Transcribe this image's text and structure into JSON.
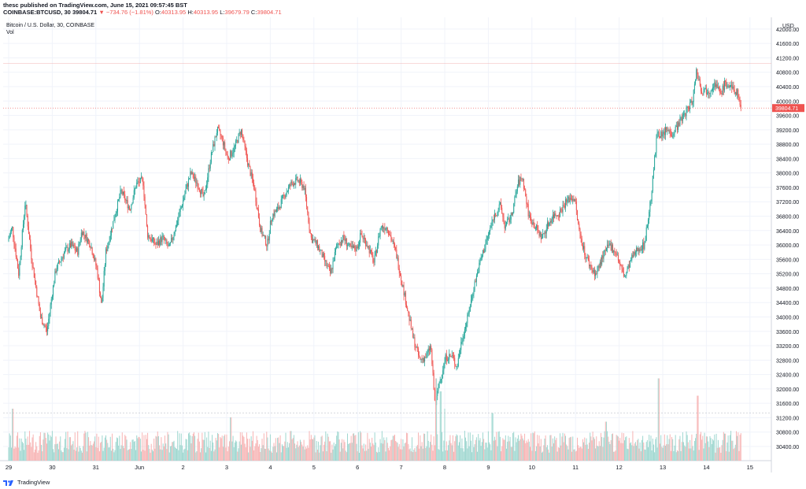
{
  "header": {
    "publish_line": "thesc published on TradingView.com, June 15, 2021 09:57:45 BST",
    "symbol": "COINBASE:BTCUSD, 30",
    "last": "39804.71",
    "change": "−734.76 (−1.81%)",
    "open_label": "O:",
    "open": "40313.95",
    "high_label": "H:",
    "high": "40313.95",
    "low_label": "L:",
    "low": "39679.79",
    "close_label": "C:",
    "close": "39804.71"
  },
  "chart_data": {
    "type": "candlestick",
    "title": "Bitcoin / U.S. Dollar, 30, COINBASE",
    "volume_label": "Vol",
    "currency": "USD",
    "ylim": [
      30000,
      42500
    ],
    "y_ticks": [
      30400,
      30800,
      31200,
      31600,
      32000,
      32400,
      32800,
      33200,
      33600,
      34000,
      34400,
      34800,
      35200,
      35600,
      36000,
      36400,
      36800,
      37200,
      37600,
      38000,
      38400,
      38800,
      39200,
      39600,
      40000,
      40400,
      40800,
      41200,
      41600,
      42000
    ],
    "y_tick_labels": [
      "30400.00",
      "30800.00",
      "31200.00",
      "31600.00",
      "32000.00",
      "32400.00",
      "32800.00",
      "33200.00",
      "33600.00",
      "34000.00",
      "34400.00",
      "34800.00",
      "35200.00",
      "35600.00",
      "36000.00",
      "36400.00",
      "36800.00",
      "37200.00",
      "37600.00",
      "38000.00",
      "38400.00",
      "38800.00",
      "39200.00",
      "39600.00",
      "40000.00",
      "40400.00",
      "40800.00",
      "41200.00",
      "41600.00",
      "42000.00"
    ],
    "x_ticks": [
      {
        "day": 0,
        "label": "29"
      },
      {
        "day": 1,
        "label": "30"
      },
      {
        "day": 2,
        "label": "31"
      },
      {
        "day": 3,
        "label": "Jun"
      },
      {
        "day": 4,
        "label": "2"
      },
      {
        "day": 5,
        "label": "3"
      },
      {
        "day": 6,
        "label": "4"
      },
      {
        "day": 7,
        "label": "5"
      },
      {
        "day": 8,
        "label": "6"
      },
      {
        "day": 9,
        "label": "7"
      },
      {
        "day": 10,
        "label": "8"
      },
      {
        "day": 11,
        "label": "9"
      },
      {
        "day": 12,
        "label": "10"
      },
      {
        "day": 13,
        "label": "11"
      },
      {
        "day": 14,
        "label": "12"
      },
      {
        "day": 15,
        "label": "13"
      },
      {
        "day": 16,
        "label": "14"
      },
      {
        "day": 17,
        "label": "15"
      }
    ],
    "last_price": 39804.71,
    "last_price_label": "39804.71",
    "days_shown": 17.6,
    "price_path": [
      [
        0.0,
        36100
      ],
      [
        0.1,
        36500
      ],
      [
        0.25,
        35200
      ],
      [
        0.4,
        37200
      ],
      [
        0.55,
        35600
      ],
      [
        0.75,
        34000
      ],
      [
        0.9,
        33600
      ],
      [
        1.0,
        34500
      ],
      [
        1.1,
        35300
      ],
      [
        1.3,
        35800
      ],
      [
        1.45,
        36000
      ],
      [
        1.6,
        35800
      ],
      [
        1.7,
        36400
      ],
      [
        1.9,
        36000
      ],
      [
        2.05,
        35300
      ],
      [
        2.15,
        34300
      ],
      [
        2.25,
        35800
      ],
      [
        2.45,
        36800
      ],
      [
        2.6,
        37500
      ],
      [
        2.8,
        37000
      ],
      [
        2.95,
        37700
      ],
      [
        3.1,
        37800
      ],
      [
        3.2,
        36300
      ],
      [
        3.4,
        36000
      ],
      [
        3.55,
        36200
      ],
      [
        3.7,
        35900
      ],
      [
        3.9,
        36700
      ],
      [
        4.1,
        37600
      ],
      [
        4.2,
        38000
      ],
      [
        4.35,
        37700
      ],
      [
        4.5,
        37300
      ],
      [
        4.65,
        38400
      ],
      [
        4.8,
        39200
      ],
      [
        4.9,
        39000
      ],
      [
        5.05,
        38400
      ],
      [
        5.2,
        38700
      ],
      [
        5.35,
        39200
      ],
      [
        5.5,
        38300
      ],
      [
        5.65,
        37600
      ],
      [
        5.8,
        36400
      ],
      [
        5.95,
        36000
      ],
      [
        6.05,
        36800
      ],
      [
        6.2,
        37000
      ],
      [
        6.35,
        37400
      ],
      [
        6.5,
        37700
      ],
      [
        6.65,
        37800
      ],
      [
        6.8,
        37600
      ],
      [
        6.95,
        36200
      ],
      [
        7.1,
        36000
      ],
      [
        7.25,
        35600
      ],
      [
        7.4,
        35200
      ],
      [
        7.55,
        36000
      ],
      [
        7.7,
        36200
      ],
      [
        7.85,
        35900
      ],
      [
        8.0,
        35900
      ],
      [
        8.1,
        36300
      ],
      [
        8.25,
        36000
      ],
      [
        8.4,
        35500
      ],
      [
        8.55,
        36500
      ],
      [
        8.7,
        36500
      ],
      [
        8.9,
        35800
      ],
      [
        9.1,
        34600
      ],
      [
        9.2,
        34000
      ],
      [
        9.3,
        33400
      ],
      [
        9.45,
        32800
      ],
      [
        9.6,
        32900
      ],
      [
        9.7,
        33200
      ],
      [
        9.8,
        31500
      ],
      [
        9.9,
        32200
      ],
      [
        10.05,
        32900
      ],
      [
        10.2,
        32900
      ],
      [
        10.3,
        32600
      ],
      [
        10.4,
        33300
      ],
      [
        10.55,
        34000
      ],
      [
        10.7,
        34900
      ],
      [
        10.85,
        35600
      ],
      [
        11.0,
        36200
      ],
      [
        11.15,
        36800
      ],
      [
        11.3,
        37100
      ],
      [
        11.4,
        36500
      ],
      [
        11.55,
        36800
      ],
      [
        11.7,
        37700
      ],
      [
        11.8,
        37900
      ],
      [
        11.95,
        36800
      ],
      [
        12.1,
        36500
      ],
      [
        12.25,
        36200
      ],
      [
        12.4,
        36600
      ],
      [
        12.5,
        36800
      ],
      [
        12.65,
        36900
      ],
      [
        12.8,
        37200
      ],
      [
        12.9,
        37300
      ],
      [
        13.0,
        37300
      ],
      [
        13.1,
        36400
      ],
      [
        13.25,
        35700
      ],
      [
        13.4,
        35300
      ],
      [
        13.5,
        35200
      ],
      [
        13.65,
        35700
      ],
      [
        13.8,
        36000
      ],
      [
        13.95,
        35800
      ],
      [
        14.05,
        35400
      ],
      [
        14.15,
        35100
      ],
      [
        14.3,
        35600
      ],
      [
        14.45,
        35900
      ],
      [
        14.6,
        36000
      ],
      [
        14.75,
        37300
      ],
      [
        14.9,
        39200
      ],
      [
        15.0,
        39000
      ],
      [
        15.1,
        39200
      ],
      [
        15.25,
        39100
      ],
      [
        15.4,
        39400
      ],
      [
        15.55,
        39700
      ],
      [
        15.7,
        40000
      ],
      [
        15.8,
        40900
      ],
      [
        15.9,
        40300
      ],
      [
        16.0,
        40300
      ],
      [
        16.1,
        40300
      ],
      [
        16.2,
        40500
      ],
      [
        16.35,
        40200
      ],
      [
        16.45,
        40500
      ],
      [
        16.55,
        40400
      ],
      [
        16.65,
        40300
      ],
      [
        16.75,
        40200
      ],
      [
        16.8,
        39800
      ]
    ],
    "volume_spikes": [
      {
        "day": 9.8,
        "rel": 0.95
      },
      {
        "day": 10.0,
        "rel": 0.6
      },
      {
        "day": 9.9,
        "rel": 0.8
      },
      {
        "day": 14.9,
        "rel": 0.95
      },
      {
        "day": 15.8,
        "rel": 0.75
      },
      {
        "day": 11.1,
        "rel": 0.55
      },
      {
        "day": 0.1,
        "rel": 0.6
      },
      {
        "day": 5.1,
        "rel": 0.5
      },
      {
        "day": 13.7,
        "rel": 0.45
      }
    ],
    "volume_reference_level": 0.55,
    "colors": {
      "up": "#26a69a",
      "down": "#ef5350",
      "up_volume": "#9fd7d0",
      "down_volume": "#f7b4b4",
      "grid": "#f0f3fa",
      "axis_text": "#131722",
      "last_price_line": "#ef5350"
    }
  },
  "footer": {
    "brand": "TradingView"
  }
}
